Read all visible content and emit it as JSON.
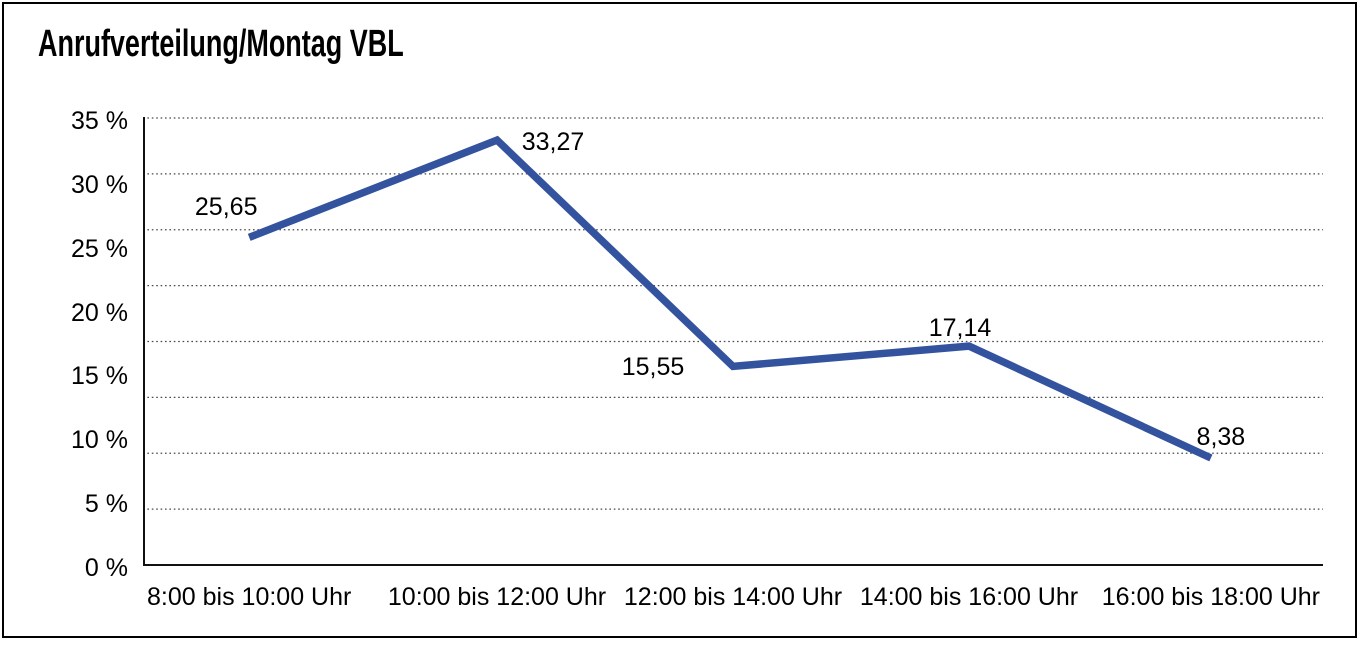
{
  "chart_data": {
    "type": "line",
    "title": "Anrufverteilung/Montag VBL",
    "categories": [
      "8:00 bis 10:00 Uhr",
      "10:00 bis 12:00 Uhr",
      "12:00 bis 14:00 Uhr",
      "14:00 bis 16:00 Uhr",
      "16:00 bis 18:00 Uhr"
    ],
    "values": [
      25.65,
      33.27,
      15.55,
      17.14,
      8.38
    ],
    "point_labels": [
      "25,65",
      "33,27",
      "15,55",
      "17,14",
      "8,38"
    ],
    "y_tick_labels": [
      "35 %",
      "30 %",
      "25 %",
      "20 %",
      "15 %",
      "10 %",
      "5 %",
      "0 %"
    ],
    "ylim": [
      0,
      35
    ],
    "xlabel": "",
    "ylabel": "",
    "grid": "horizontal-dotted",
    "legend": "none",
    "line_color": "#34539F",
    "text_color": "#000000",
    "background": "#FFFFFF"
  }
}
